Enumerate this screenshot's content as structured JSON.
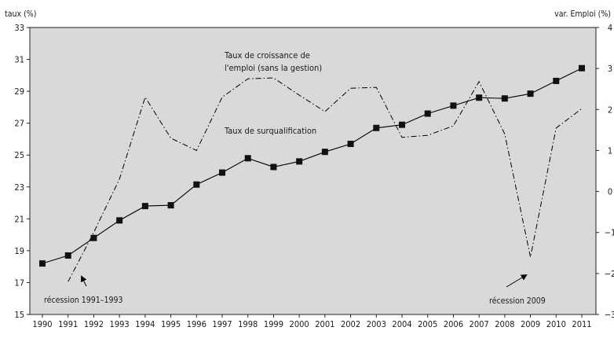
{
  "chart_data": {
    "type": "line",
    "y_left_label": "taux (%)",
    "y_right_label": "var. Emploi (%)",
    "x": [
      1990,
      1991,
      1992,
      1993,
      1994,
      1995,
      1996,
      1997,
      1998,
      1999,
      2000,
      2001,
      2002,
      2003,
      2004,
      2005,
      2006,
      2007,
      2008,
      2009,
      2010,
      2011
    ],
    "x_ticks": [
      "1990",
      "1991",
      "1992",
      "1993",
      "1994",
      "1995",
      "1996",
      "1997",
      "1998",
      "1999",
      "2000",
      "2001",
      "2002",
      "2003",
      "2004",
      "2005",
      "2006",
      "2007",
      "2008",
      "2009",
      "2010",
      "2011"
    ],
    "y_left_lim": [
      15,
      33
    ],
    "y_left_ticks": [
      "15",
      "17",
      "19",
      "21",
      "23",
      "25",
      "27",
      "29",
      "31",
      "33"
    ],
    "y_right_lim": [
      -3,
      4
    ],
    "y_right_ticks": [
      "−3",
      "−2",
      "−1",
      "0",
      "1",
      "2",
      "3",
      "4"
    ],
    "background_color": "#d9d9d9",
    "series": [
      {
        "name": "Taux de surqualification",
        "axis": "left",
        "style": "solid-square-markers",
        "color": "#000000",
        "x": [
          1990,
          1991,
          1992,
          1993,
          1994,
          1995,
          1996,
          1997,
          1998,
          1999,
          2000,
          2001,
          2002,
          2003,
          2004,
          2005,
          2006,
          2007,
          2008,
          2009,
          2010,
          2011
        ],
        "values": [
          18.2,
          18.7,
          19.8,
          20.9,
          21.8,
          21.85,
          23.15,
          23.9,
          24.8,
          24.25,
          24.6,
          25.2,
          25.7,
          26.7,
          26.9,
          27.6,
          28.1,
          28.6,
          28.55,
          28.85,
          29.65,
          30.45
        ]
      },
      {
        "name": "Taux de croissance de l'emploi (sans la gestion)",
        "axis": "right",
        "style": "dash-dot",
        "color": "#000000",
        "x": [
          1991,
          1992,
          1993,
          1994,
          1995,
          1996,
          1997,
          1998,
          1999,
          2000,
          2001,
          2002,
          2003,
          2004,
          2005,
          2006,
          2007,
          2008,
          2009,
          2010,
          2011
        ],
        "values": [
          -2.2,
          -1.0,
          0.3,
          2.3,
          1.3,
          1.0,
          2.3,
          2.75,
          2.77,
          2.35,
          1.95,
          2.52,
          2.54,
          1.32,
          1.37,
          1.6,
          2.68,
          1.4,
          -1.6,
          1.55,
          2.02
        ]
      }
    ],
    "annotations": {
      "series_label_employment_line1": "Taux de croissance de",
      "series_label_employment_line2": "l'emploi (sans la gestion)",
      "series_label_overqual": "Taux de surqualification",
      "recession_1": "récession 1991–1993",
      "recession_2": "récession 2009"
    },
    "grid": false,
    "legend": "none"
  }
}
